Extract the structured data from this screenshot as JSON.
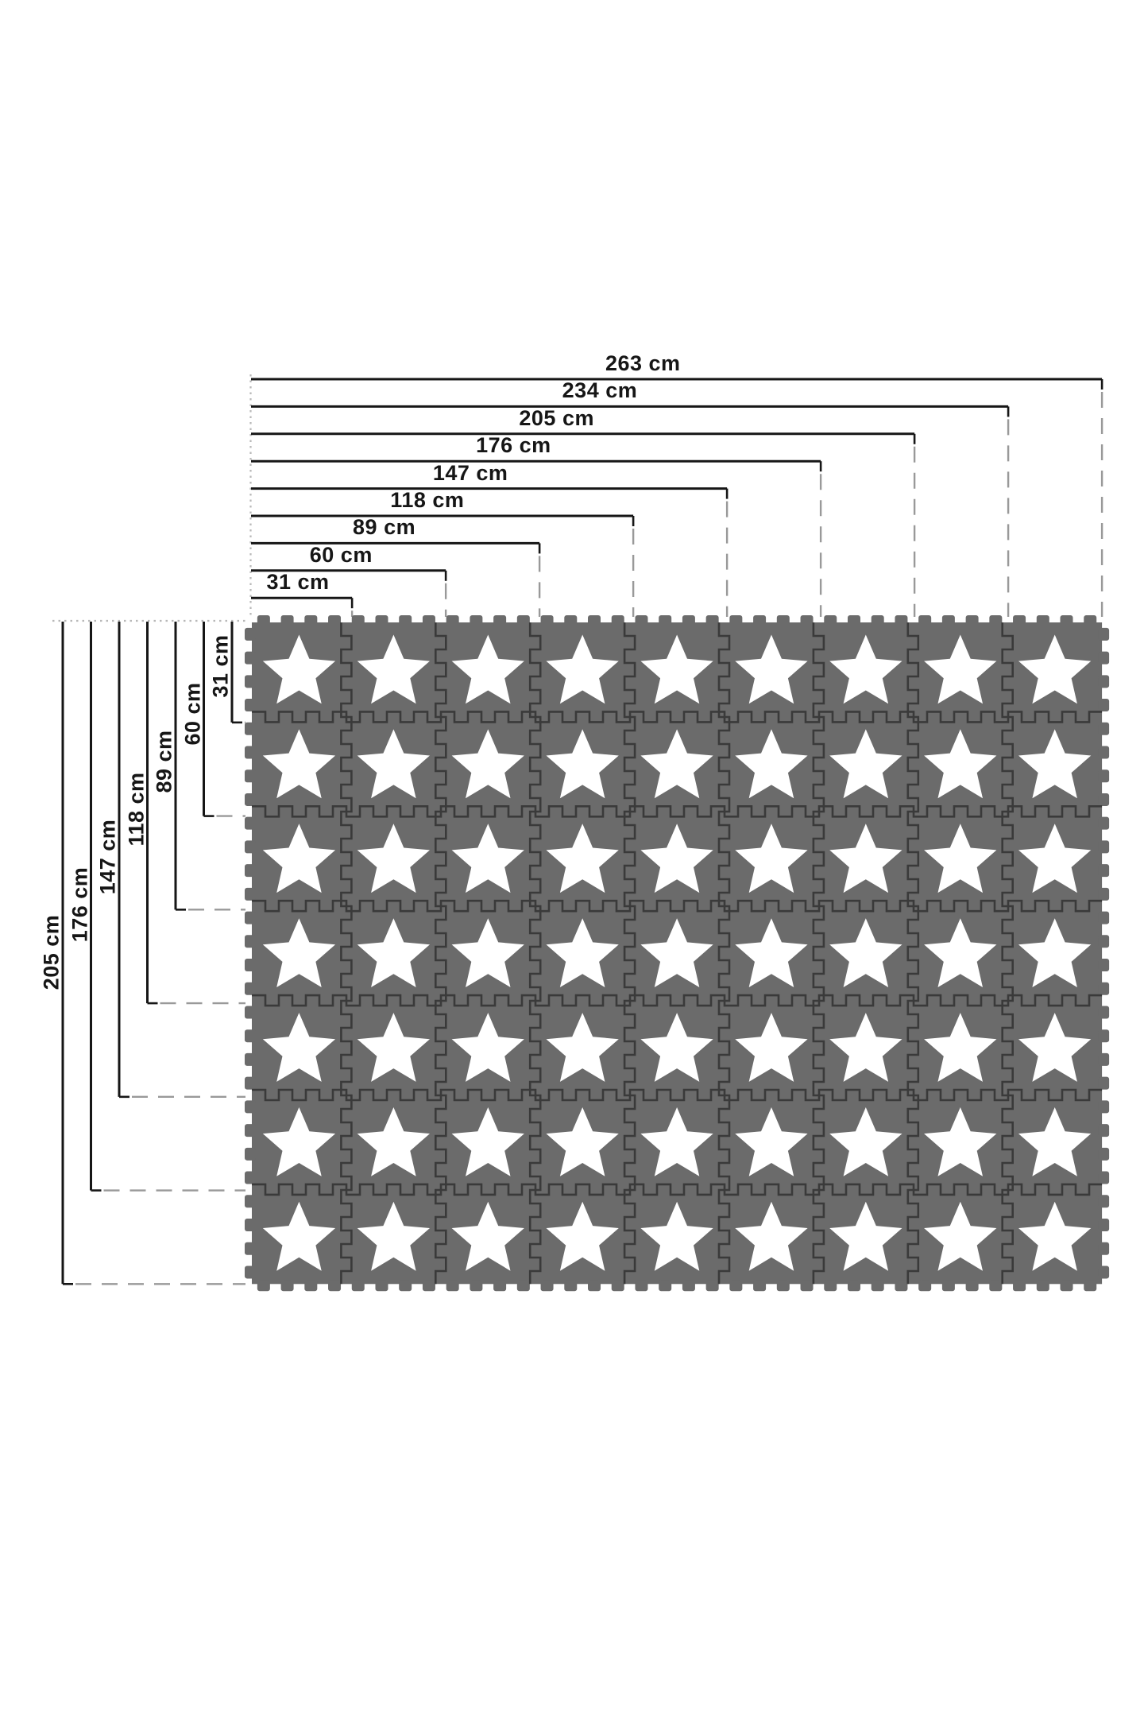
{
  "canvas": {
    "background": "#ffffff"
  },
  "diagram": {
    "unit": "cm",
    "top_dimensions": [
      {
        "label": "263 cm",
        "cm": 263
      },
      {
        "label": "234 cm",
        "cm": 234
      },
      {
        "label": "205 cm",
        "cm": 205
      },
      {
        "label": "176 cm",
        "cm": 176
      },
      {
        "label": "147 cm",
        "cm": 147
      },
      {
        "label": "118 cm",
        "cm": 118
      },
      {
        "label": "89 cm",
        "cm": 89
      },
      {
        "label": "60 cm",
        "cm": 60
      },
      {
        "label": "31 cm",
        "cm": 31
      }
    ],
    "left_dimensions": [
      {
        "label": "205 cm",
        "cm": 205
      },
      {
        "label": "176 cm",
        "cm": 176
      },
      {
        "label": "147 cm",
        "cm": 147
      },
      {
        "label": "118 cm",
        "cm": 118
      },
      {
        "label": "89 cm",
        "cm": 89
      },
      {
        "label": "60 cm",
        "cm": 60
      },
      {
        "label": "31 cm",
        "cm": 31
      }
    ],
    "mat": {
      "columns": 9,
      "rows": 7,
      "tiles_total": 63,
      "tile_color": "#6b6b6b",
      "seam_color": "#3a3a3a",
      "star_color": "#ffffff"
    },
    "colors": {
      "dimension_line": "#161616",
      "dash_line": "#999999",
      "guide_dot": "#b8b8b8",
      "label_text": "#161616"
    }
  }
}
